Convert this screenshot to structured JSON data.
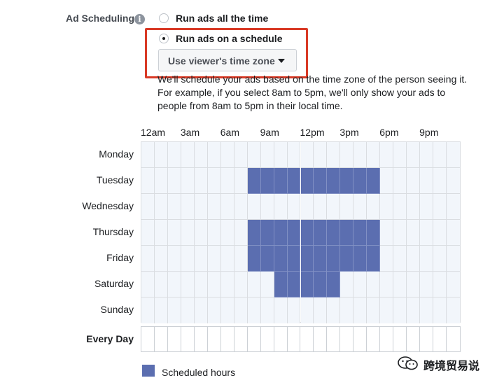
{
  "ad_scheduling": {
    "label": "Ad Scheduling",
    "info_icon": "info-icon",
    "options": [
      {
        "label": "Run ads all the time",
        "selected": false
      },
      {
        "label": "Run ads on a schedule",
        "selected": true
      }
    ],
    "time_zone_select": {
      "value": "Use viewer's time zone",
      "icon": "caret-down-icon"
    },
    "description_lines": [
      "We'll schedule your ads based on the time zone of the person seeing it.",
      "For example, if you select 8am to 5pm, we'll only show your ads to",
      "people from 8am to 5pm in their local time."
    ]
  },
  "schedule_grid": {
    "time_labels": [
      "12am",
      "3am",
      "6am",
      "9am",
      "12pm",
      "3pm",
      "6pm",
      "9pm"
    ],
    "days": [
      "Monday",
      "Tuesday",
      "Wednesday",
      "Thursday",
      "Friday",
      "Saturday",
      "Sunday"
    ],
    "every_day_label": "Every Day",
    "cells_per_row": 24,
    "scheduled_hours": {
      "Monday": [],
      "Tuesday": [
        8,
        9,
        10,
        11,
        12,
        13,
        14,
        15,
        16,
        17
      ],
      "Wednesday": [],
      "Thursday": [
        8,
        9,
        10,
        11,
        12,
        13,
        14,
        15,
        16,
        17
      ],
      "Friday": [
        8,
        9,
        10,
        11,
        12,
        13,
        14,
        15,
        16,
        17
      ],
      "Saturday": [
        10,
        11,
        12,
        13,
        14
      ],
      "Sunday": []
    },
    "scheduled_color": "#5b6eb0",
    "empty_color": "#f2f6fb"
  },
  "legend": {
    "label": "Scheduled hours",
    "color": "#5b6eb0"
  },
  "highlight_color": "#d93a26",
  "watermark": {
    "text": "跨境贸易说",
    "icon": "wechat-icon"
  }
}
